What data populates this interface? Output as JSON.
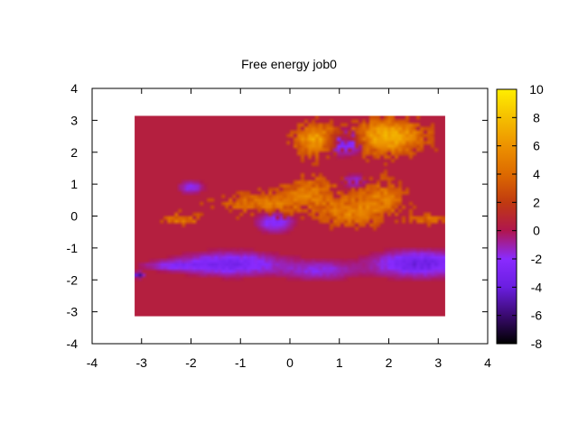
{
  "chart_data": {
    "type": "heatmap",
    "title": "Free energy job0",
    "xlabel": "",
    "ylabel": "",
    "xlim": [
      -4,
      4
    ],
    "ylim": [
      -4,
      4
    ],
    "x_ticks": [
      "-4",
      "-3",
      "-2",
      "-1",
      "0",
      "1",
      "2",
      "3",
      "4"
    ],
    "y_ticks": [
      "-4",
      "-3",
      "-2",
      "-1",
      "0",
      "1",
      "2",
      "3",
      "4"
    ],
    "data_extent": {
      "x": [
        -3.14,
        3.14
      ],
      "y": [
        -3.14,
        3.14
      ]
    },
    "colorbar": {
      "range": [
        -8,
        10
      ],
      "ticks": [
        "-8",
        "-6",
        "-4",
        "-2",
        "0",
        "2",
        "4",
        "6",
        "8",
        "10"
      ],
      "colormap": [
        {
          "value": -8,
          "color": "#000000"
        },
        {
          "value": -6,
          "color": "#3a0a70"
        },
        {
          "value": -4,
          "color": "#6a1ee0"
        },
        {
          "value": -2,
          "color": "#8a2bff"
        },
        {
          "value": 0,
          "color": "#b0164e"
        },
        {
          "value": 2,
          "color": "#c03a10"
        },
        {
          "value": 4,
          "color": "#dd6a00"
        },
        {
          "value": 6,
          "color": "#ed9200"
        },
        {
          "value": 8,
          "color": "#f5bf00"
        },
        {
          "value": 10,
          "color": "#ffee00"
        }
      ]
    },
    "background_value": 0.5,
    "features": [
      {
        "kind": "well",
        "x": -1.2,
        "y": -1.5,
        "value": -3.6,
        "sx": 1.0,
        "sy": 0.35
      },
      {
        "kind": "well",
        "x": 2.6,
        "y": -1.5,
        "value": -4.2,
        "sx": 0.9,
        "sy": 0.38
      },
      {
        "kind": "well",
        "x": 0.6,
        "y": -1.7,
        "value": -2.2,
        "sx": 0.7,
        "sy": 0.3
      },
      {
        "kind": "well",
        "x": -2.4,
        "y": -1.55,
        "value": -2.0,
        "sx": 0.6,
        "sy": 0.15
      },
      {
        "kind": "well",
        "x": -3.05,
        "y": -1.85,
        "value": -7.0,
        "sx": 0.08,
        "sy": 0.08
      },
      {
        "kind": "well",
        "x": -2.0,
        "y": 0.9,
        "value": -2.5,
        "sx": 0.25,
        "sy": 0.2
      },
      {
        "kind": "hill",
        "x": -0.6,
        "y": 0.4,
        "value": 3.5,
        "sx": 0.9,
        "sy": 0.35
      },
      {
        "kind": "hill",
        "x": 0.4,
        "y": 0.8,
        "value": 3.2,
        "sx": 0.6,
        "sy": 0.5
      },
      {
        "kind": "hill",
        "x": 1.2,
        "y": 0.1,
        "value": 3.8,
        "sx": 0.6,
        "sy": 0.45
      },
      {
        "kind": "hill",
        "x": 1.9,
        "y": 0.6,
        "value": 3.4,
        "sx": 0.5,
        "sy": 0.6
      },
      {
        "kind": "hill",
        "x": 0.5,
        "y": 2.4,
        "value": 5.5,
        "sx": 0.4,
        "sy": 0.5
      },
      {
        "kind": "hill",
        "x": 2.0,
        "y": 2.5,
        "value": 6.2,
        "sx": 0.7,
        "sy": 0.55
      },
      {
        "kind": "hill",
        "x": -2.2,
        "y": -0.1,
        "value": 3.5,
        "sx": 0.5,
        "sy": 0.2
      },
      {
        "kind": "hill",
        "x": 2.8,
        "y": -0.1,
        "value": 3.0,
        "sx": 0.4,
        "sy": 0.2
      },
      {
        "kind": "well",
        "x": 1.1,
        "y": 2.3,
        "value": -3.5,
        "sx": 0.35,
        "sy": 0.35
      },
      {
        "kind": "well",
        "x": -0.3,
        "y": -0.2,
        "value": -3.0,
        "sx": 0.35,
        "sy": 0.3
      },
      {
        "kind": "well",
        "x": 1.3,
        "y": 1.1,
        "value": -2.2,
        "sx": 0.25,
        "sy": 0.2
      }
    ]
  }
}
